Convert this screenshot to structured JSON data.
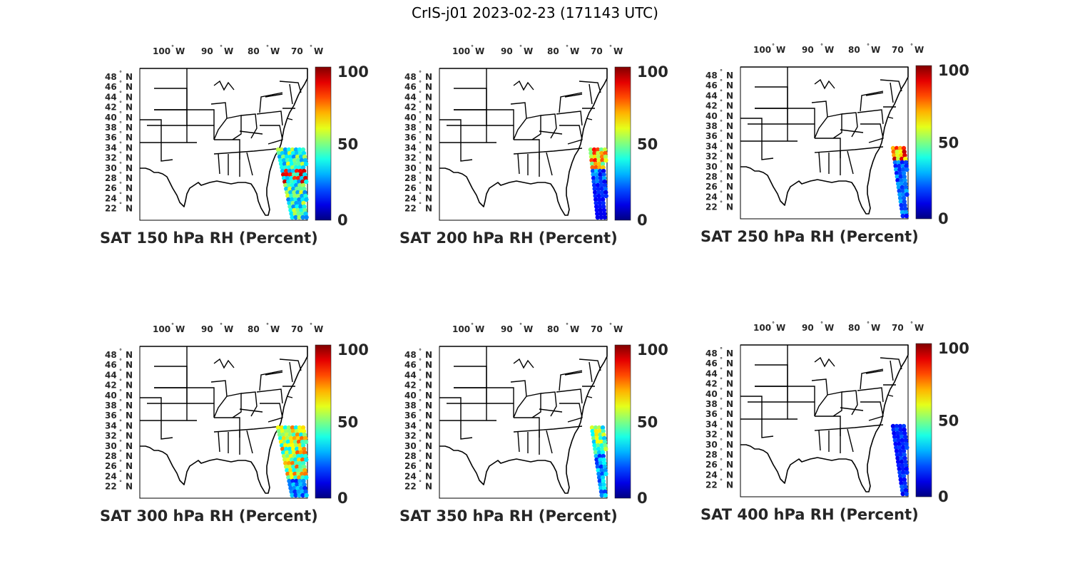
{
  "figure_title": "CrIS-j01 2023-02-23 (171143 UTC)",
  "lon_labels": [
    "100",
    "90",
    "80",
    "70"
  ],
  "lon_suffix": "W",
  "lat_labels": [
    "48",
    "46",
    "44",
    "42",
    "40",
    "38",
    "36",
    "34",
    "32",
    "30",
    "28",
    "26",
    "24",
    "22"
  ],
  "lat_suffix": "N",
  "degree_symbol": "°",
  "colorbar": {
    "min": 0,
    "mid": 50,
    "max": 100,
    "labels": [
      "100",
      "50",
      "0"
    ],
    "colormap": "jet"
  },
  "panels": [
    {
      "title": "SAT 150 hPa RH (Percent)",
      "pressure_hPa": 150,
      "field": "swath-mixed-high"
    },
    {
      "title": "SAT 200 hPa RH (Percent)",
      "pressure_hPa": 200,
      "field": "swath-narrow-hot"
    },
    {
      "title": "SAT 250 hPa RH (Percent)",
      "pressure_hPa": 250,
      "field": "swath-dry-top-moist"
    },
    {
      "title": "SAT 300 hPa RH (Percent)",
      "pressure_hPa": 300,
      "field": "swath-moist"
    },
    {
      "title": "SAT 350 hPa RH (Percent)",
      "pressure_hPa": 350,
      "field": "swath-medium"
    },
    {
      "title": "SAT 400 hPa RH (Percent)",
      "pressure_hPa": 400,
      "field": "swath-dry"
    }
  ],
  "map": {
    "lon_range_deg_w": [
      108,
      67
    ],
    "lat_range_deg_n": [
      22,
      50
    ],
    "region": "Eastern/Central United States with state boundaries",
    "swath_location": "Atlantic off the US southeast coast"
  }
}
